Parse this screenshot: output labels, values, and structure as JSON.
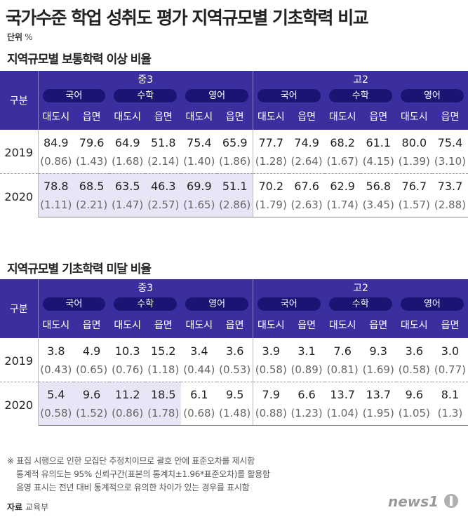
{
  "title": "국가수준 학업 성취도 평가 지역규모별 기초학력 비교",
  "unit_label": "단위",
  "unit_value": "%",
  "headers": {
    "gubun": "구분",
    "groups": [
      "중3",
      "고2"
    ],
    "subjects": [
      "국어",
      "수학",
      "영어",
      "국어",
      "수학",
      "영어"
    ],
    "areas": [
      "대도시",
      "읍면",
      "대도시",
      "읍면",
      "대도시",
      "읍면",
      "대도시",
      "읍면",
      "대도시",
      "읍면",
      "대도시",
      "읍면"
    ]
  },
  "tables": [
    {
      "title": "지역규모별 보통학력 이상 비율",
      "rows": [
        {
          "year": "2019",
          "values": [
            "84.9",
            "79.6",
            "64.9",
            "51.8",
            "75.4",
            "65.9",
            "77.7",
            "74.9",
            "68.2",
            "61.1",
            "80.0",
            "75.4"
          ],
          "se": [
            "(0.86)",
            "(1.43)",
            "(1.68)",
            "(2.14)",
            "(1.40)",
            "(1.86)",
            "(1.28)",
            "(2.64)",
            "(1.67)",
            "(4.15)",
            "(1.39)",
            "(3.10)"
          ],
          "highlight": [
            false,
            false,
            false,
            false,
            false,
            false,
            false,
            false,
            false,
            false,
            false,
            false
          ]
        },
        {
          "year": "2020",
          "values": [
            "78.8",
            "68.5",
            "63.5",
            "46.3",
            "69.9",
            "51.1",
            "70.2",
            "67.6",
            "62.9",
            "56.8",
            "76.7",
            "73.7"
          ],
          "se": [
            "(1.11)",
            "(2.21)",
            "(1.47)",
            "(2.57)",
            "(1.65)",
            "(2.86)",
            "(1.79)",
            "(2.63)",
            "(1.74)",
            "(3.45)",
            "(1.57)",
            "(2.88)"
          ],
          "highlight": [
            true,
            true,
            true,
            true,
            true,
            true,
            false,
            false,
            false,
            false,
            false,
            false
          ]
        }
      ]
    },
    {
      "title": "지역규모별 기초학력 미달 비율",
      "rows": [
        {
          "year": "2019",
          "values": [
            "3.8",
            "4.9",
            "10.3",
            "15.2",
            "3.4",
            "3.6",
            "3.9",
            "3.1",
            "7.6",
            "9.3",
            "3.6",
            "3.0"
          ],
          "se": [
            "(0.43)",
            "(0.65)",
            "(0.76)",
            "(1.18)",
            "(0.44)",
            "(0.53)",
            "(0.58)",
            "(0.89)",
            "(0.81)",
            "(1.69)",
            "(0.58)",
            "(0.77)"
          ],
          "highlight": [
            false,
            false,
            false,
            false,
            false,
            false,
            false,
            false,
            false,
            false,
            false,
            false
          ]
        },
        {
          "year": "2020",
          "values": [
            "5.4",
            "9.6",
            "11.2",
            "18.5",
            "6.1",
            "9.5",
            "7.9",
            "6.6",
            "13.7",
            "13.7",
            "9.6",
            "8.1"
          ],
          "se": [
            "(0.58)",
            "(1.52)",
            "(0.86)",
            "(1.78)",
            "(0.68)",
            "(1.48)",
            "(0.88)",
            "(1.23)",
            "(1.04)",
            "(1.95)",
            "(1.05)",
            "(1.3)"
          ],
          "highlight": [
            true,
            true,
            true,
            true,
            false,
            false,
            false,
            false,
            false,
            false,
            false,
            false
          ]
        }
      ]
    }
  ],
  "notes": [
    "※ 표집 시행으로 인한 모집단 추정치이므로 괄호 안에 표준오차를 제시함",
    "통계적 유의도는 95% 신뢰구간(표본의 통계치±1.96*표준오차)를 활용함",
    "음영 표시는 전년 대비 통계적으로 유의한 차이가 있는 경우를 표시함"
  ],
  "source_label": "자료",
  "source_value": "교육부",
  "logo_text": "news1",
  "colors": {
    "header": "#3b2fa0",
    "pill": "#1a1472",
    "highlight": "#e8e6f6"
  },
  "chart_data": [
    {
      "type": "table",
      "title": "지역규모별 보통학력 이상 비율",
      "columns": [
        "중3 국어 대도시",
        "중3 국어 읍면",
        "중3 수학 대도시",
        "중3 수학 읍면",
        "중3 영어 대도시",
        "중3 영어 읍면",
        "고2 국어 대도시",
        "고2 국어 읍면",
        "고2 수학 대도시",
        "고2 수학 읍면",
        "고2 영어 대도시",
        "고2 영어 읍면"
      ],
      "rows": {
        "2019": [
          84.9,
          79.6,
          64.9,
          51.8,
          75.4,
          65.9,
          77.7,
          74.9,
          68.2,
          61.1,
          80.0,
          75.4
        ],
        "2020": [
          78.8,
          68.5,
          63.5,
          46.3,
          69.9,
          51.1,
          70.2,
          67.6,
          62.9,
          56.8,
          76.7,
          73.7
        ]
      },
      "standard_errors": {
        "2019": [
          0.86,
          1.43,
          1.68,
          2.14,
          1.4,
          1.86,
          1.28,
          2.64,
          1.67,
          4.15,
          1.39,
          3.1
        ],
        "2020": [
          1.11,
          2.21,
          1.47,
          2.57,
          1.65,
          2.86,
          1.79,
          2.63,
          1.74,
          3.45,
          1.57,
          2.88
        ]
      }
    },
    {
      "type": "table",
      "title": "지역규모별 기초학력 미달 비율",
      "columns": [
        "중3 국어 대도시",
        "중3 국어 읍면",
        "중3 수학 대도시",
        "중3 수학 읍면",
        "중3 영어 대도시",
        "중3 영어 읍면",
        "고2 국어 대도시",
        "고2 국어 읍면",
        "고2 수학 대도시",
        "고2 수학 읍면",
        "고2 영어 대도시",
        "고2 영어 읍면"
      ],
      "rows": {
        "2019": [
          3.8,
          4.9,
          10.3,
          15.2,
          3.4,
          3.6,
          3.9,
          3.1,
          7.6,
          9.3,
          3.6,
          3.0
        ],
        "2020": [
          5.4,
          9.6,
          11.2,
          18.5,
          6.1,
          9.5,
          7.9,
          6.6,
          13.7,
          13.7,
          9.6,
          8.1
        ]
      },
      "standard_errors": {
        "2019": [
          0.43,
          0.65,
          0.76,
          1.18,
          0.44,
          0.53,
          0.58,
          0.89,
          0.81,
          1.69,
          0.58,
          0.77
        ],
        "2020": [
          0.58,
          1.52,
          0.86,
          1.78,
          0.68,
          1.48,
          0.88,
          1.23,
          1.04,
          1.95,
          1.05,
          1.3
        ]
      }
    }
  ]
}
